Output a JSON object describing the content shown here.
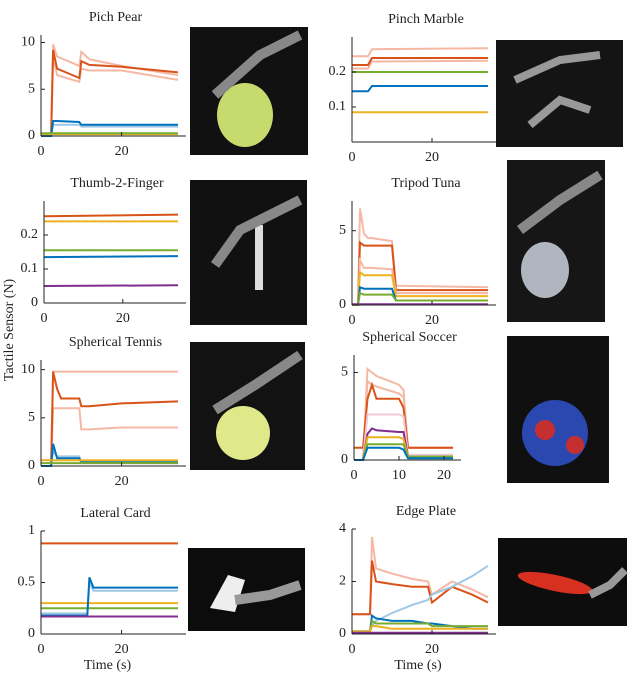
{
  "ylabel": "Tactile Sensor (N)",
  "chart_data": [
    {
      "type": "line",
      "title": "Pich Pear",
      "x": [
        0,
        2.5,
        3,
        4,
        9.5,
        10,
        12,
        20,
        34
      ],
      "series": [
        {
          "color": "#f4b8a4",
          "values": [
            0,
            0,
            9.8,
            8.5,
            7.5,
            9.0,
            8.2,
            7.5,
            6.5
          ]
        },
        {
          "color": "#f4b8a4",
          "values": [
            0,
            0,
            8.5,
            6.5,
            5.8,
            7.2,
            7.0,
            7.0,
            6.0
          ]
        },
        {
          "color": "#d95319",
          "values": [
            0,
            0,
            9.2,
            7.2,
            6.2,
            8.0,
            7.6,
            7.4,
            6.8
          ]
        },
        {
          "color": "#9fc7e6",
          "values": [
            0,
            0,
            1.2,
            1.2,
            1.2,
            1.0,
            1.0,
            1.0,
            1.0
          ]
        },
        {
          "color": "#0072bd",
          "values": [
            0,
            0,
            1.6,
            1.6,
            1.5,
            1.2,
            1.2,
            1.2,
            1.2
          ]
        },
        {
          "color": "#edb120",
          "values": [
            0.2,
            0.2,
            0.2,
            0.2,
            0.2,
            0.2,
            0.2,
            0.2,
            0.2
          ]
        },
        {
          "color": "#77ac30",
          "values": [
            0.3,
            0.3,
            0.3,
            0.3,
            0.3,
            0.3,
            0.3,
            0.3,
            0.3
          ]
        }
      ],
      "xlim": [
        0,
        34
      ],
      "xticks": [
        0,
        20
      ],
      "ylim": [
        0,
        10.8
      ],
      "yticks": [
        0,
        5,
        10
      ]
    },
    {
      "type": "line",
      "title": "Pinch Marble",
      "x": [
        0,
        4,
        5,
        34
      ],
      "series": [
        {
          "color": "#f4b8a4",
          "values": [
            0.245,
            0.245,
            0.265,
            0.268
          ]
        },
        {
          "color": "#f4b8a4",
          "values": [
            0.21,
            0.21,
            0.23,
            0.232
          ]
        },
        {
          "color": "#d95319",
          "values": [
            0.22,
            0.22,
            0.24,
            0.24
          ]
        },
        {
          "color": "#77ac30",
          "values": [
            0.2,
            0.2,
            0.2,
            0.2
          ]
        },
        {
          "color": "#0072bd",
          "values": [
            0.145,
            0.145,
            0.16,
            0.16
          ]
        },
        {
          "color": "#edb120",
          "values": [
            0.085,
            0.085,
            0.085,
            0.085
          ]
        }
      ],
      "xlim": [
        0,
        34
      ],
      "xticks": [
        0,
        20
      ],
      "ylim": [
        0,
        0.3
      ],
      "yticks": [
        0.1,
        0.2
      ]
    },
    {
      "type": "line",
      "title": "Thumb-2-Finger",
      "x": [
        0,
        34
      ],
      "series": [
        {
          "color": "#d95319",
          "values": [
            0.255,
            0.26
          ]
        },
        {
          "color": "#edb120",
          "values": [
            0.24,
            0.24
          ]
        },
        {
          "color": "#77ac30",
          "values": [
            0.155,
            0.155
          ]
        },
        {
          "color": "#0072bd",
          "values": [
            0.135,
            0.138
          ]
        },
        {
          "color": "#7e2f8e",
          "values": [
            0.05,
            0.052
          ]
        }
      ],
      "xlim": [
        0,
        34
      ],
      "xticks": [
        0,
        20
      ],
      "ylim": [
        0,
        0.3
      ],
      "yticks": [
        0,
        0.1,
        0.2
      ]
    },
    {
      "type": "line",
      "title": "Tripod Tuna",
      "x": [
        0,
        1.5,
        2,
        3,
        4,
        5,
        10,
        11,
        34
      ],
      "series": [
        {
          "color": "#f4b8a4",
          "values": [
            0,
            0,
            6.5,
            4.8,
            4.5,
            4.5,
            4.3,
            1.3,
            1.2
          ]
        },
        {
          "color": "#d95319",
          "values": [
            0,
            0,
            4.2,
            4.0,
            4.0,
            4.0,
            4.0,
            1.0,
            1.0
          ]
        },
        {
          "color": "#f4b8a4",
          "values": [
            0,
            0,
            3.0,
            2.5,
            2.5,
            2.5,
            2.4,
            0.8,
            0.8
          ]
        },
        {
          "color": "#edb120",
          "values": [
            0,
            0,
            2.2,
            2.0,
            2.0,
            2.0,
            2.0,
            0.6,
            0.6
          ]
        },
        {
          "color": "#0072bd",
          "values": [
            0,
            0,
            1.2,
            1.1,
            1.1,
            1.1,
            1.1,
            0.3,
            0.3
          ]
        },
        {
          "color": "#77ac30",
          "values": [
            0,
            0,
            0.8,
            0.7,
            0.7,
            0.7,
            0.7,
            0.3,
            0.3
          ]
        },
        {
          "color": "#7e2f8e",
          "values": [
            0.05,
            0.05,
            0.05,
            0.05,
            0.05,
            0.05,
            0.05,
            0.05,
            0.05
          ]
        }
      ],
      "xlim": [
        0,
        34
      ],
      "xticks": [
        0,
        20
      ],
      "ylim": [
        0,
        7
      ],
      "yticks": [
        0,
        5
      ]
    },
    {
      "type": "line",
      "title": "Spherical Tennis",
      "x": [
        0,
        2.5,
        3,
        4,
        5,
        9.5,
        10,
        12,
        20,
        34
      ],
      "series": [
        {
          "color": "#f4b8a4",
          "values": [
            0,
            0,
            9.8,
            9.8,
            9.8,
            9.8,
            9.8,
            9.8,
            9.8,
            9.8
          ]
        },
        {
          "color": "#f4b8a4",
          "values": [
            0,
            0,
            6.0,
            6.0,
            6.0,
            6.0,
            3.8,
            3.8,
            4.0,
            4.0
          ]
        },
        {
          "color": "#d95319",
          "values": [
            0,
            0,
            9.8,
            8.0,
            7.0,
            7.0,
            6.2,
            6.2,
            6.5,
            6.7
          ]
        },
        {
          "color": "#9fc7e6",
          "values": [
            0,
            0,
            1.5,
            1.0,
            1.0,
            1.0,
            0.3,
            0.3,
            0.3,
            0.3
          ]
        },
        {
          "color": "#0072bd",
          "values": [
            0,
            0,
            2.3,
            0.8,
            0.8,
            0.8,
            0.4,
            0.4,
            0.4,
            0.4
          ]
        },
        {
          "color": "#edb120",
          "values": [
            0.6,
            0.6,
            0.6,
            0.6,
            0.6,
            0.6,
            0.6,
            0.6,
            0.6,
            0.6
          ]
        },
        {
          "color": "#77ac30",
          "values": [
            0.3,
            0.3,
            0.3,
            0.3,
            0.3,
            0.3,
            0.3,
            0.3,
            0.3,
            0.3
          ]
        }
      ],
      "xlim": [
        0,
        34
      ],
      "xticks": [
        0,
        20
      ],
      "ylim": [
        0,
        11
      ],
      "yticks": [
        0,
        5,
        10
      ]
    },
    {
      "type": "line",
      "title": "Spherical Soccer",
      "x": [
        0,
        2,
        3,
        4,
        5,
        10,
        11,
        12,
        22
      ],
      "series": [
        {
          "color": "#f4b8a4",
          "values": [
            0,
            0,
            5.2,
            5.0,
            4.8,
            4.3,
            4.0,
            0.7,
            0.7
          ]
        },
        {
          "color": "#f4b8a4",
          "values": [
            0,
            0,
            4.5,
            4.3,
            4.2,
            3.8,
            3.6,
            0.7,
            0.7
          ]
        },
        {
          "color": "#d95319",
          "values": [
            0.7,
            0.7,
            3.5,
            4.3,
            3.5,
            3.5,
            3.0,
            0.7,
            0.7
          ]
        },
        {
          "color": "#f2c9d6",
          "values": [
            0,
            0,
            2.6,
            2.6,
            2.6,
            2.6,
            2.5,
            0.3,
            0.3
          ]
        },
        {
          "color": "#7e2f8e",
          "values": [
            0,
            0,
            1.5,
            1.8,
            1.7,
            1.6,
            1.6,
            0.2,
            0.2
          ]
        },
        {
          "color": "#edb120",
          "values": [
            0,
            0,
            1.3,
            1.3,
            1.3,
            1.3,
            1.2,
            0.2,
            0.2
          ]
        },
        {
          "color": "#77ac30",
          "values": [
            0,
            0,
            0.9,
            0.9,
            0.9,
            0.9,
            0.9,
            0.2,
            0.2
          ]
        },
        {
          "color": "#0072bd",
          "values": [
            0,
            0,
            0.7,
            0.7,
            0.7,
            0.7,
            0.6,
            0.1,
            0.1
          ]
        }
      ],
      "xlim": [
        0,
        22
      ],
      "xticks": [
        0,
        10,
        20
      ],
      "ylim": [
        0,
        6
      ],
      "yticks": [
        0,
        5
      ]
    },
    {
      "type": "line",
      "title": "Lateral Card",
      "xlabel": "Time (s)",
      "x": [
        0,
        11.5,
        12,
        13,
        34
      ],
      "series": [
        {
          "color": "#d95319",
          "values": [
            0.88,
            0.88,
            0.88,
            0.88,
            0.88
          ]
        },
        {
          "color": "#edb120",
          "values": [
            0.3,
            0.3,
            0.3,
            0.3,
            0.3
          ]
        },
        {
          "color": "#77ac30",
          "values": [
            0.25,
            0.25,
            0.25,
            0.25,
            0.25
          ]
        },
        {
          "color": "#9fc7e6",
          "values": [
            0.2,
            0.2,
            0.5,
            0.42,
            0.42
          ]
        },
        {
          "color": "#0072bd",
          "values": [
            0.18,
            0.18,
            0.55,
            0.45,
            0.45
          ]
        },
        {
          "color": "#7e2f8e",
          "values": [
            0.17,
            0.17,
            0.17,
            0.17,
            0.17
          ]
        }
      ],
      "xlim": [
        0,
        34
      ],
      "xticks": [
        0,
        20
      ],
      "ylim": [
        0,
        1
      ],
      "yticks": [
        0,
        0.5,
        1
      ]
    },
    {
      "type": "line",
      "title": "Edge Plate",
      "xlabel": "Time (s)",
      "x": [
        0,
        4.5,
        5,
        6,
        10,
        15,
        19,
        20,
        25,
        30,
        34
      ],
      "series": [
        {
          "color": "#f4b8a4",
          "values": [
            0.75,
            0.75,
            3.7,
            2.5,
            2.3,
            2.1,
            2.0,
            1.5,
            2.0,
            1.7,
            1.4
          ]
        },
        {
          "color": "#d95319",
          "values": [
            0.75,
            0.75,
            2.8,
            2.0,
            1.9,
            1.8,
            1.8,
            1.2,
            1.8,
            1.5,
            1.2
          ]
        },
        {
          "color": "#9fc7e6",
          "values": [
            0.1,
            0.1,
            0.3,
            0.5,
            0.8,
            1.1,
            1.3,
            1.5,
            1.8,
            2.2,
            2.6
          ]
        },
        {
          "color": "#0072bd",
          "values": [
            0.1,
            0.1,
            0.7,
            0.6,
            0.5,
            0.5,
            0.4,
            0.4,
            0.3,
            0.2,
            0.2
          ]
        },
        {
          "color": "#77ac30",
          "values": [
            0.1,
            0.1,
            0.5,
            0.4,
            0.4,
            0.4,
            0.4,
            0.3,
            0.3,
            0.3,
            0.3
          ]
        },
        {
          "color": "#edb120",
          "values": [
            0.1,
            0.1,
            0.3,
            0.3,
            0.2,
            0.2,
            0.2,
            0.2,
            0.2,
            0.2,
            0.2
          ]
        },
        {
          "color": "#7e2f8e",
          "values": [
            0.05,
            0.05,
            0.05,
            0.05,
            0.05,
            0.05,
            0.05,
            0.05,
            0.05,
            0.05,
            0.05
          ]
        }
      ],
      "xlim": [
        0,
        34
      ],
      "xticks": [
        0,
        20
      ],
      "ylim": [
        0,
        4
      ],
      "yticks": [
        0,
        2,
        4
      ]
    }
  ]
}
